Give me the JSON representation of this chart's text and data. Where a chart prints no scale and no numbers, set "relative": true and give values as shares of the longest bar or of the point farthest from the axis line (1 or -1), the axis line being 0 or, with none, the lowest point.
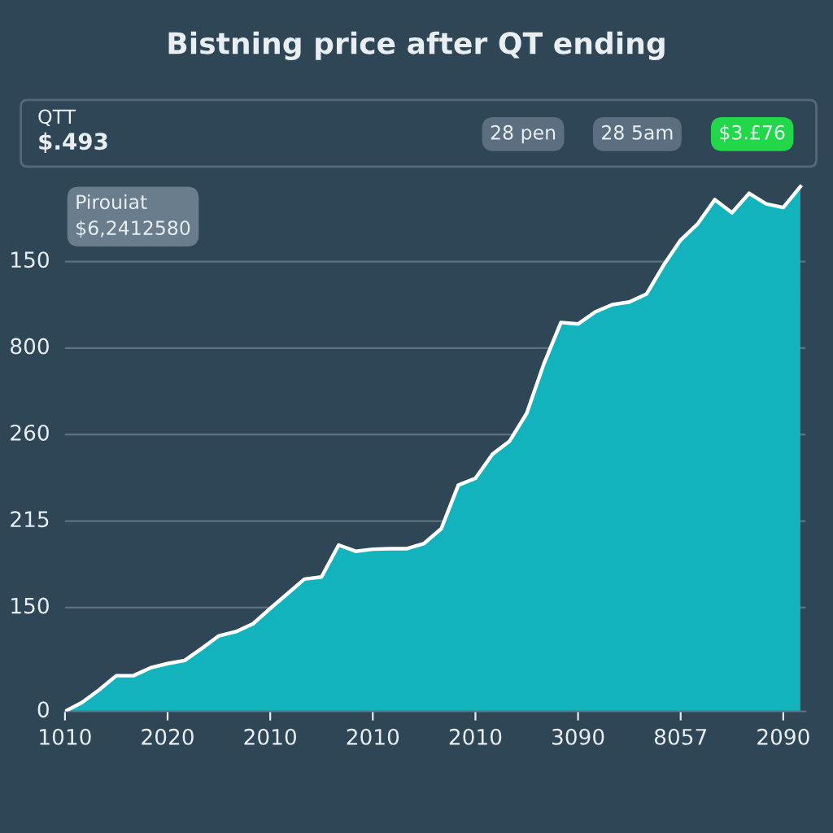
{
  "chart_data": {
    "type": "area",
    "title": "Bistning price after QT ending",
    "relative": true,
    "categories": [
      "1010",
      null,
      null,
      null,
      null,
      null,
      "2020",
      null,
      null,
      null,
      null,
      null,
      "2010",
      null,
      null,
      null,
      null,
      null,
      "2010",
      null,
      null,
      null,
      null,
      null,
      "2010",
      null,
      null,
      null,
      null,
      null,
      "3090",
      null,
      null,
      null,
      null,
      null,
      "8057",
      null,
      null,
      null,
      null,
      null,
      "2090",
      null
    ],
    "series": [
      {
        "color": "#12b3bd",
        "values": [
          0,
          0.017,
          0.041,
          0.068,
          0.068,
          0.083,
          0.091,
          0.097,
          0.12,
          0.144,
          0.152,
          0.167,
          0.196,
          0.224,
          0.252,
          0.256,
          0.317,
          0.305,
          0.309,
          0.31,
          0.31,
          0.32,
          0.348,
          0.431,
          0.444,
          0.49,
          0.515,
          0.568,
          0.662,
          0.741,
          0.738,
          0.761,
          0.775,
          0.78,
          0.795,
          0.85,
          0.898,
          0.929,
          0.975,
          0.95,
          0.987,
          0.967,
          0.96,
          1
        ]
      }
    ],
    "grid": "y",
    "annotations": [
      "QTT",
      "$.493",
      "28 pen",
      "28 5am",
      "$3.£76",
      "Pirouiat\n$6,2412580",
      "0",
      "150",
      "215",
      "260",
      "800",
      "150"
    ]
  }
}
